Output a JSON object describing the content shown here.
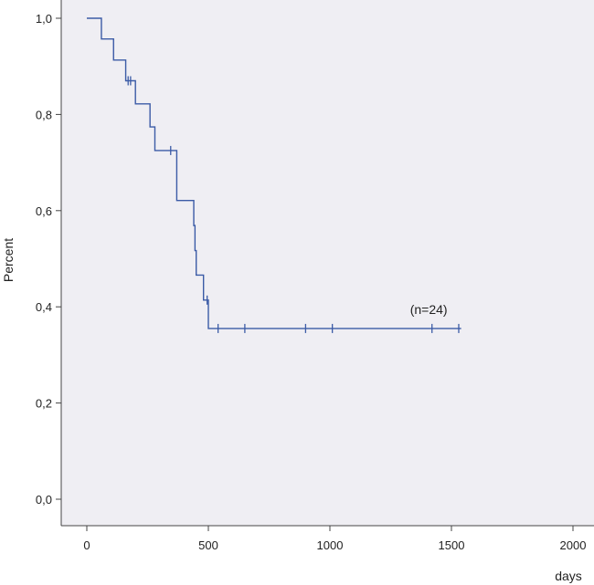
{
  "chart_data": {
    "type": "line",
    "title": "",
    "xlabel": "days",
    "ylabel": "Percent",
    "xlim": [
      -100,
      2100
    ],
    "ylim": [
      -0.05,
      1.04
    ],
    "xticks": [
      0,
      500,
      1000,
      1500,
      2000
    ],
    "xtick_labels": [
      "0",
      "500",
      "1000",
      "1500",
      "2000"
    ],
    "yticks": [
      0.0,
      0.2,
      0.4,
      0.6,
      0.8,
      1.0
    ],
    "ytick_labels": [
      "0,0",
      "0,2",
      "0,4",
      "0,6",
      "0,8",
      "1,0"
    ],
    "grid": false,
    "background_color": "#efeef3",
    "line_color": "#3b5ba6",
    "series": [
      {
        "steps": [
          [
            0,
            1.0
          ],
          [
            60,
            0.957
          ],
          [
            110,
            0.913
          ],
          [
            160,
            0.87
          ],
          [
            200,
            0.822
          ],
          [
            260,
            0.774
          ],
          [
            280,
            0.725
          ],
          [
            370,
            0.677
          ],
          [
            370,
            0.621
          ],
          [
            440,
            0.569
          ],
          [
            445,
            0.517
          ],
          [
            450,
            0.466
          ],
          [
            480,
            0.414
          ],
          [
            500,
            0.355
          ],
          [
            1540,
            0.355
          ]
        ],
        "censored": [
          [
            170,
            0.87
          ],
          [
            180,
            0.87
          ],
          [
            345,
            0.725
          ],
          [
            495,
            0.414
          ],
          [
            540,
            0.355
          ],
          [
            650,
            0.355
          ],
          [
            900,
            0.355
          ],
          [
            1010,
            0.355
          ],
          [
            1420,
            0.355
          ],
          [
            1530,
            0.355
          ]
        ]
      }
    ],
    "annotations": [
      {
        "text": "(n=24)",
        "x": 1420,
        "y": 0.385
      }
    ]
  }
}
